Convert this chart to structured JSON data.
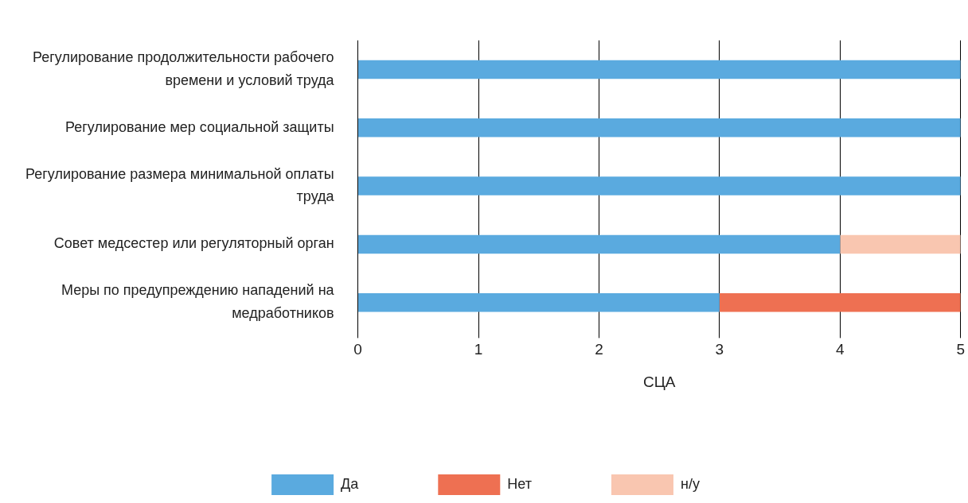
{
  "chart_data": {
    "type": "bar",
    "orientation": "horizontal",
    "stacked": true,
    "categories": [
      "Регулирование продолжительности рабочего времени и условий труда",
      "Регулирование мер социальной защиты",
      "Регулирование размера минимальной оплаты труда",
      "Совет медсестер или регуляторный орган",
      "Меры по предупреждению нападений на медработников"
    ],
    "series": [
      {
        "name": "Да",
        "color": "#5aaadf",
        "values": [
          5,
          5,
          5,
          4,
          3
        ]
      },
      {
        "name": "Нет",
        "color": "#ee7052",
        "values": [
          0,
          0,
          0,
          0,
          2
        ]
      },
      {
        "name": "н/у",
        "color": "#f9c6b0",
        "values": [
          0,
          0,
          0,
          1,
          0
        ]
      }
    ],
    "xlabel": "СЦА",
    "xlim": [
      0,
      5
    ],
    "xticks": [
      0,
      1,
      2,
      3,
      4,
      5
    ],
    "grid": "x",
    "legend": "bottom"
  }
}
